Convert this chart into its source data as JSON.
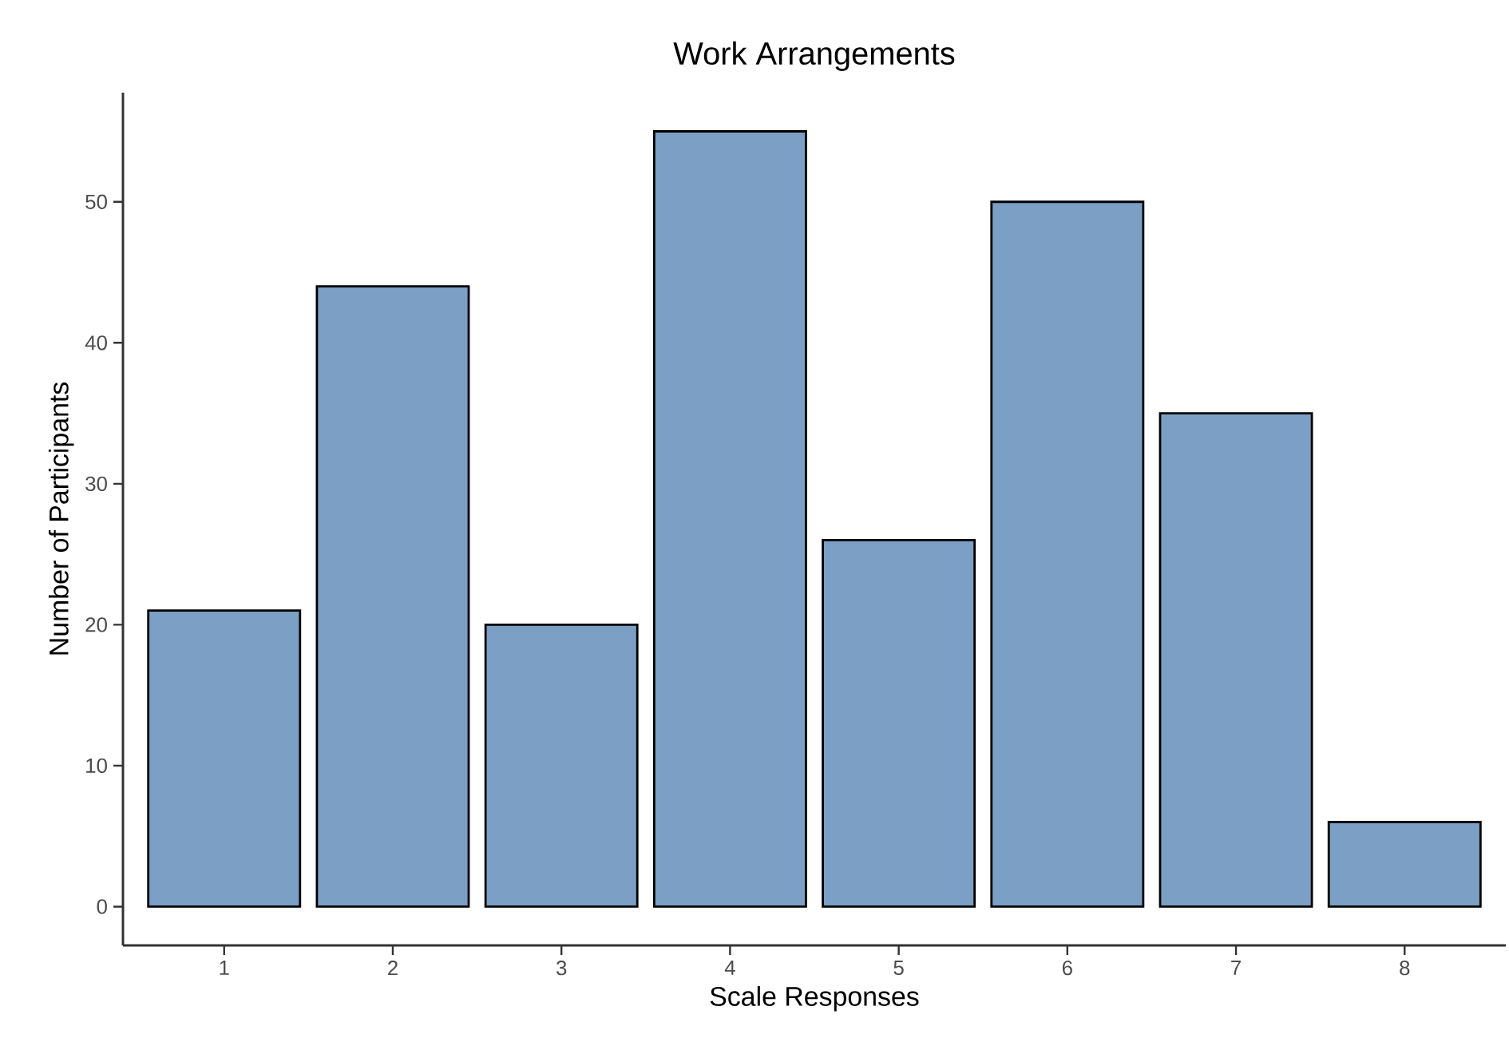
{
  "chart_data": {
    "type": "bar",
    "title": "Work Arrangements",
    "xlabel": "Scale Responses",
    "ylabel": "Number of Participants",
    "categories": [
      "1",
      "2",
      "3",
      "4",
      "5",
      "6",
      "7",
      "8"
    ],
    "values": [
      21,
      44,
      20,
      55,
      26,
      50,
      35,
      6
    ],
    "color": "#7b9fc5",
    "ylim": [
      -2.75,
      57.75
    ],
    "yticks": [
      0,
      10,
      20,
      30,
      40,
      50
    ]
  }
}
